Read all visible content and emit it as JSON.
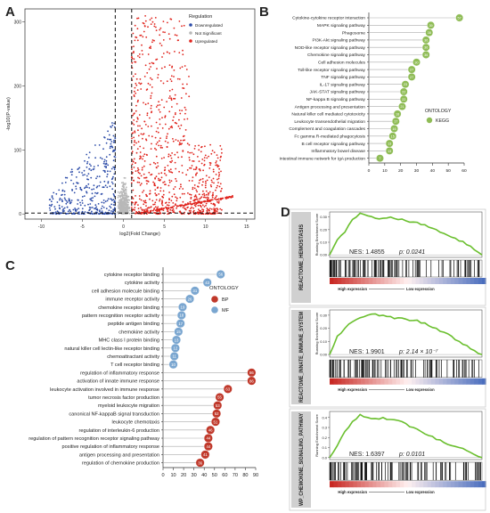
{
  "chart_data": [
    {
      "panel": "A",
      "type": "scatter",
      "xlabel": "log2(Fold Change)",
      "ylabel": "-log10(P-value)",
      "xticks": [
        "-10",
        "-5",
        "0",
        "5",
        "10",
        "15"
      ],
      "yticks": [
        "0",
        "100",
        "200",
        "300"
      ],
      "xlim": [
        -12,
        16
      ],
      "ylim": [
        -8,
        320
      ],
      "legend_title": "Regulation",
      "legend_position": "top-right",
      "series": [
        {
          "name": "Downregulated",
          "color": "#2b4ba8"
        },
        {
          "name": "Not Significant",
          "color": "#b8b8b8"
        },
        {
          "name": "Upregulated",
          "color": "#e0241d"
        }
      ],
      "vlines": [
        -1,
        1
      ],
      "hline": 1.3
    },
    {
      "panel": "B",
      "type": "lollipop",
      "legend_title": "ONTOLOGY",
      "legend_items": [
        {
          "name": "KEGG",
          "color": "#8fbc56"
        }
      ],
      "xticks": [
        "0",
        "10",
        "20",
        "30",
        "40",
        "50",
        "60"
      ],
      "xlim": [
        0,
        60
      ],
      "categories": [
        "Cytokine-cytokine receptor interaction",
        "MAPK signaling pathway",
        "Phagosome",
        "PI3K-Akt signaling pathway",
        "NOD-like receptor signaling pathway",
        "Chemokine signaling pathway",
        "Cell adhesion molecules",
        "Toll-like receptor signaling pathway",
        "TNF signaling pathway",
        "IL-17 signaling pathway",
        "JAK-STAT signaling pathway",
        "NF-kappa B signaling pathway",
        "Antigen processing and presentation",
        "Natural killer cell mediated cytotoxicity",
        "Leukocyte transendothelial migration",
        "Complement and coagulation cascades",
        "Fc gamma R-mediated phagocytosis",
        "B cell receptor signaling pathway",
        "Inflammatory bowel disease",
        "Intestinal immune network for IgA production"
      ],
      "values": [
        57,
        39,
        38,
        36,
        36,
        36,
        30,
        27,
        27,
        23,
        22,
        22,
        21,
        18,
        17,
        16,
        15,
        13,
        13,
        7
      ]
    },
    {
      "panel": "C",
      "type": "lollipop",
      "legend_title": "ONTOLOGY",
      "legend_items": [
        {
          "name": "BP",
          "color": "#c0392b"
        },
        {
          "name": "MF",
          "color": "#7aa6d0"
        }
      ],
      "xticks": [
        "0",
        "10",
        "20",
        "30",
        "40",
        "50",
        "60",
        "70",
        "80",
        "90"
      ],
      "xlim": [
        0,
        90
      ],
      "categories": [
        "cytokine receptor binding",
        "cytokine activity",
        "cell adhesion molecule binding",
        "immune receptor activity",
        "chemokine receptor binding",
        "pattern recognition receptor activity",
        "peptide antigen binding",
        "chemokine activity",
        "MHC class I protein binding",
        "natural killer cell lectin-like receptor binding",
        "chemoattractant activity",
        "T cell receptor binding",
        "regulation of inflammatory response",
        "activation of innate immune response",
        "leukocyte activation involved in immune response",
        "tumor necrosis factor production",
        "myeloid leukocyte migration",
        "canonical NF-kappaB signal transduction",
        "leukocyte chemotaxis",
        "regulation of interleukin-6 production",
        "regulation of pattern recognition receptor signaling pathway",
        "positive regulation of inflammatory response",
        "antigen processing and presentation",
        "regulation of chemokine production"
      ],
      "values": [
        56,
        43,
        31,
        26,
        19,
        18,
        17,
        15,
        13,
        12,
        11,
        10,
        86,
        86,
        63,
        55,
        53,
        52,
        51,
        46,
        44,
        44,
        41,
        36
      ],
      "groups": [
        "MF",
        "MF",
        "MF",
        "MF",
        "MF",
        "MF",
        "MF",
        "MF",
        "MF",
        "MF",
        "MF",
        "MF",
        "BP",
        "BP",
        "BP",
        "BP",
        "BP",
        "BP",
        "BP",
        "BP",
        "BP",
        "BP",
        "BP",
        "BP"
      ]
    },
    {
      "panel": "D",
      "type": "line",
      "ylabel": "Running Enrichment Score",
      "bottom_label_high": "High expression",
      "bottom_label_low": "Low expression",
      "plots": [
        {
          "name": "REACTOME_HEMOSTASIS",
          "nes_text": "NES: 1.4855",
          "p_text": "p: 0.0241",
          "yticks": [
            "0.00",
            "0.10",
            "0.20",
            "0.30"
          ],
          "ylim": [
            -0.02,
            0.34
          ],
          "x": [
            0,
            5,
            10,
            15,
            20,
            25,
            30,
            35,
            40,
            45,
            50,
            55,
            60,
            65,
            70,
            75,
            80,
            85,
            90,
            95,
            100
          ],
          "y": [
            0.0,
            0.12,
            0.18,
            0.28,
            0.33,
            0.31,
            0.29,
            0.29,
            0.3,
            0.28,
            0.27,
            0.26,
            0.24,
            0.22,
            0.2,
            0.17,
            0.14,
            0.11,
            0.08,
            0.04,
            0.0
          ]
        },
        {
          "name": "REACTOME_INNATE_IMMUNE_SYSTEM",
          "nes_text": "NES: 1.9901",
          "p_text": "p: 2.14 × 10⁻⁷",
          "yticks": [
            "0.00",
            "0.10",
            "0.20",
            "0.30"
          ],
          "ylim": [
            -0.02,
            0.34
          ],
          "x": [
            0,
            5,
            10,
            15,
            20,
            25,
            30,
            35,
            40,
            45,
            50,
            55,
            60,
            65,
            70,
            75,
            80,
            85,
            90,
            95,
            100
          ],
          "y": [
            0.0,
            0.14,
            0.2,
            0.25,
            0.28,
            0.3,
            0.31,
            0.3,
            0.29,
            0.28,
            0.27,
            0.26,
            0.24,
            0.22,
            0.2,
            0.17,
            0.14,
            0.1,
            0.07,
            0.03,
            0.0
          ]
        },
        {
          "name": "WP_CHEMOKINE_SIGNALING_PATHWAY",
          "nes_text": "NES: 1.6397",
          "p_text": "p: 0.0101",
          "yticks": [
            "0.0",
            "0.1",
            "0.2",
            "0.3",
            "0.4"
          ],
          "ylim": [
            -0.02,
            0.46
          ],
          "x": [
            0,
            5,
            10,
            15,
            20,
            25,
            30,
            35,
            40,
            45,
            50,
            55,
            60,
            65,
            70,
            75,
            80,
            85,
            90,
            95,
            100
          ],
          "y": [
            0.0,
            0.12,
            0.26,
            0.36,
            0.43,
            0.4,
            0.39,
            0.4,
            0.38,
            0.37,
            0.34,
            0.3,
            0.26,
            0.22,
            0.18,
            0.15,
            0.12,
            0.1,
            0.07,
            0.03,
            0.0
          ]
        }
      ]
    }
  ],
  "panel_labels": {
    "a": "A",
    "b": "B",
    "c": "C",
    "d": "D"
  }
}
